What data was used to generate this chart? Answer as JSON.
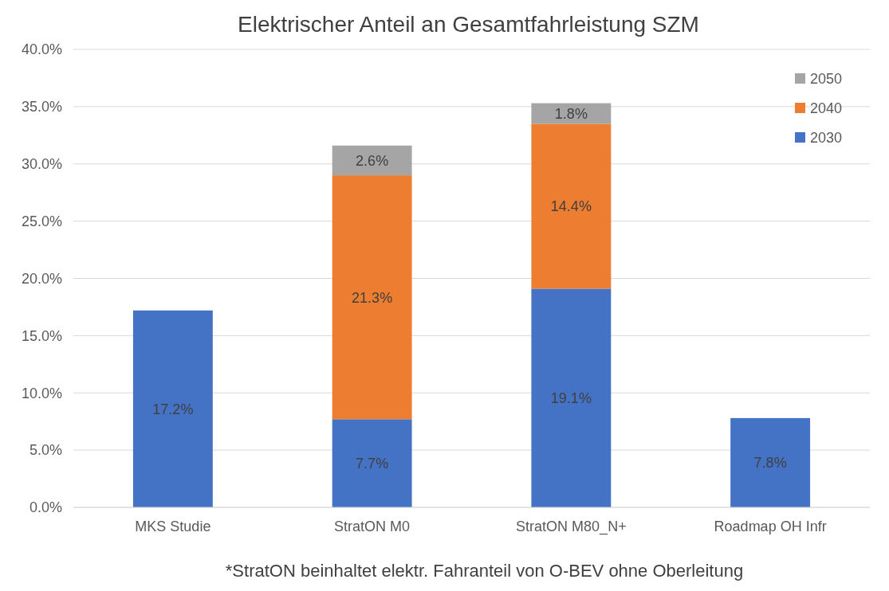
{
  "chart_data": {
    "type": "bar",
    "title": "Elektrischer Anteil an Gesamtfahrleistung SZM",
    "categories": [
      "MKS Studie",
      "StratON M0",
      "StratON M80_N+",
      "Roadmap OH Infr"
    ],
    "stacked": true,
    "series": [
      {
        "name": "2030",
        "color": "#4472c4",
        "values": [
          17.2,
          7.7,
          19.1,
          7.8
        ],
        "value_labels": [
          "17.2%",
          "7.7%",
          "19.1%",
          "7.8%"
        ]
      },
      {
        "name": "2040",
        "color": "#ed7d31",
        "values": [
          null,
          21.3,
          14.4,
          null
        ],
        "value_labels": [
          null,
          "21.3%",
          "14.4%",
          null
        ]
      },
      {
        "name": "2050",
        "color": "#a5a5a5",
        "values": [
          null,
          2.6,
          1.8,
          null
        ],
        "value_labels": [
          null,
          "2.6%",
          "1.8%",
          null
        ]
      }
    ],
    "ylim": [
      0,
      40
    ],
    "yticks": [
      {
        "value": 0,
        "label": "0.0%"
      },
      {
        "value": 5,
        "label": "5.0%"
      },
      {
        "value": 10,
        "label": "10.0%"
      },
      {
        "value": 15,
        "label": "15.0%"
      },
      {
        "value": 20,
        "label": "20.0%"
      },
      {
        "value": 25,
        "label": "25.0%"
      },
      {
        "value": 30,
        "label": "30.0%"
      },
      {
        "value": 35,
        "label": "35.0%"
      },
      {
        "value": 40,
        "label": "40.0%"
      }
    ],
    "grid": "y",
    "legend": "top right",
    "annotations": [
      "*StratON beinhaltet elektr. Fahranteil von O-BEV ohne Oberleitung"
    ]
  }
}
